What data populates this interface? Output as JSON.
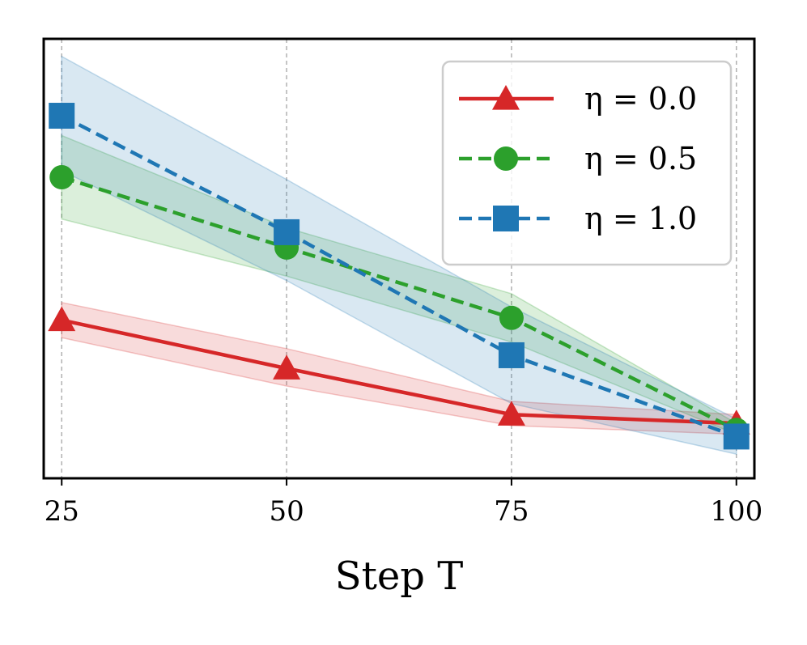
{
  "chart_data": {
    "type": "line",
    "title": "",
    "xlabel": "Step T",
    "ylabel": "",
    "x": [
      25,
      50,
      75,
      100
    ],
    "x_tick_labels": [
      "25",
      "50",
      "75",
      "100"
    ],
    "xlim": [
      23,
      102
    ],
    "ylim": [
      0,
      100
    ],
    "y_ticks_visible": false,
    "grid": "vertical dashed at x ticks",
    "legend_position": "upper right",
    "series": [
      {
        "name": "η = 0.0",
        "color": "#d62728",
        "linestyle": "solid",
        "marker": "triangle",
        "values": [
          36,
          25,
          14.5,
          12.5
        ],
        "band_lower": [
          32,
          21,
          12,
          10
        ],
        "band_upper": [
          40,
          29.5,
          17.5,
          14.5
        ]
      },
      {
        "name": "η = 0.5",
        "color": "#2ca02c",
        "linestyle": "dashed",
        "marker": "circle",
        "values": [
          68.5,
          52.5,
          36.5,
          11
        ],
        "band_lower": [
          59,
          46,
          31,
          10
        ],
        "band_upper": [
          78,
          57,
          42,
          12.5
        ]
      },
      {
        "name": "η = 1.0",
        "color": "#1f77b4",
        "linestyle": "dashed",
        "marker": "square",
        "values": [
          82.5,
          56,
          28,
          9.5
        ],
        "band_lower": [
          70,
          45,
          17,
          5.5
        ],
        "band_upper": [
          96,
          68,
          39,
          13.5
        ]
      }
    ]
  }
}
